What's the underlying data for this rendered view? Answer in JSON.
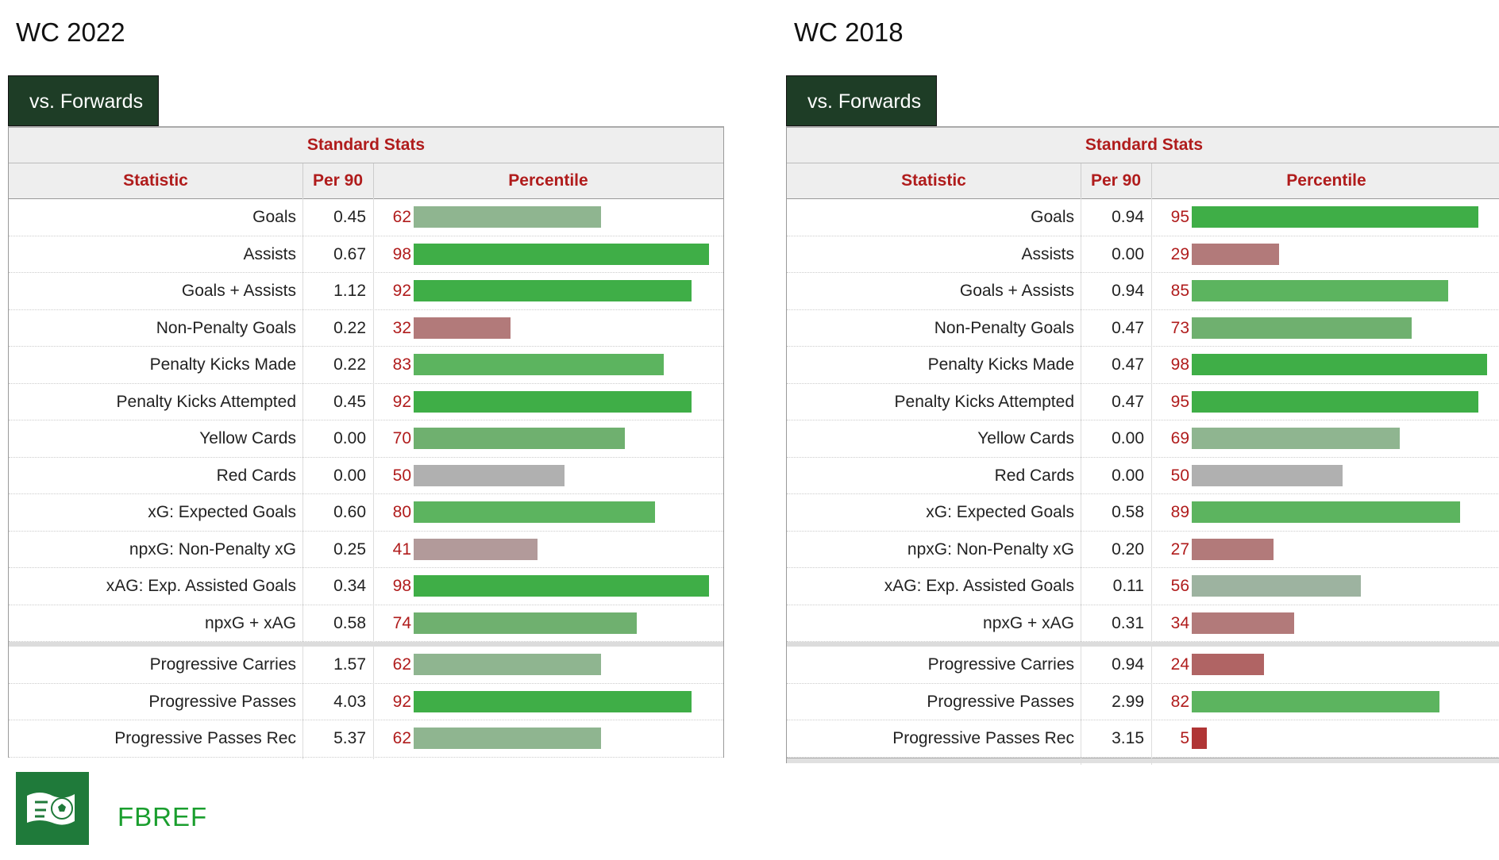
{
  "colors": {
    "tab_bg": "#1e3d26",
    "header_text": "#b01c1c",
    "brand_green": "#1a9e2e"
  },
  "panels": [
    {
      "title": "WC 2022",
      "tab": "vs. Forwards",
      "group_header": "Standard Stats",
      "columns": [
        "Statistic",
        "Per 90",
        "Percentile"
      ],
      "rows": [
        {
          "stat": "Goals",
          "per90": "0.45",
          "pct": 62
        },
        {
          "stat": "Assists",
          "per90": "0.67",
          "pct": 98
        },
        {
          "stat": "Goals + Assists",
          "per90": "1.12",
          "pct": 92
        },
        {
          "stat": "Non-Penalty Goals",
          "per90": "0.22",
          "pct": 32
        },
        {
          "stat": "Penalty Kicks Made",
          "per90": "0.22",
          "pct": 83
        },
        {
          "stat": "Penalty Kicks Attempted",
          "per90": "0.45",
          "pct": 92
        },
        {
          "stat": "Yellow Cards",
          "per90": "0.00",
          "pct": 70
        },
        {
          "stat": "Red Cards",
          "per90": "0.00",
          "pct": 50
        },
        {
          "stat": "xG: Expected Goals",
          "per90": "0.60",
          "pct": 80
        },
        {
          "stat": "npxG: Non-Penalty xG",
          "per90": "0.25",
          "pct": 41
        },
        {
          "stat": "xAG: Exp. Assisted Goals",
          "per90": "0.34",
          "pct": 98
        },
        {
          "stat": "npxG + xAG",
          "per90": "0.58",
          "pct": 74
        }
      ],
      "rows2": [
        {
          "stat": "Progressive Carries",
          "per90": "1.57",
          "pct": 62
        },
        {
          "stat": "Progressive Passes",
          "per90": "4.03",
          "pct": 92
        },
        {
          "stat": "Progressive Passes Rec",
          "per90": "5.37",
          "pct": 62
        }
      ]
    },
    {
      "title": "WC 2018",
      "tab": "vs. Forwards",
      "group_header": "Standard Stats",
      "columns": [
        "Statistic",
        "Per 90",
        "Percentile"
      ],
      "rows": [
        {
          "stat": "Goals",
          "per90": "0.94",
          "pct": 95
        },
        {
          "stat": "Assists",
          "per90": "0.00",
          "pct": 29
        },
        {
          "stat": "Goals + Assists",
          "per90": "0.94",
          "pct": 85
        },
        {
          "stat": "Non-Penalty Goals",
          "per90": "0.47",
          "pct": 73
        },
        {
          "stat": "Penalty Kicks Made",
          "per90": "0.47",
          "pct": 98
        },
        {
          "stat": "Penalty Kicks Attempted",
          "per90": "0.47",
          "pct": 95
        },
        {
          "stat": "Yellow Cards",
          "per90": "0.00",
          "pct": 69
        },
        {
          "stat": "Red Cards",
          "per90": "0.00",
          "pct": 50
        },
        {
          "stat": "xG: Expected Goals",
          "per90": "0.58",
          "pct": 89
        },
        {
          "stat": "npxG: Non-Penalty xG",
          "per90": "0.20",
          "pct": 27
        },
        {
          "stat": "xAG: Exp. Assisted Goals",
          "per90": "0.11",
          "pct": 56
        },
        {
          "stat": "npxG + xAG",
          "per90": "0.31",
          "pct": 34
        }
      ],
      "rows2": [
        {
          "stat": "Progressive Carries",
          "per90": "0.94",
          "pct": 24
        },
        {
          "stat": "Progressive Passes",
          "per90": "2.99",
          "pct": 82
        },
        {
          "stat": "Progressive Passes Rec",
          "per90": "3.15",
          "pct": 5
        }
      ]
    }
  ],
  "brand": {
    "logo_icon": "fbref-flag-ball-icon",
    "name": "FBREF"
  }
}
